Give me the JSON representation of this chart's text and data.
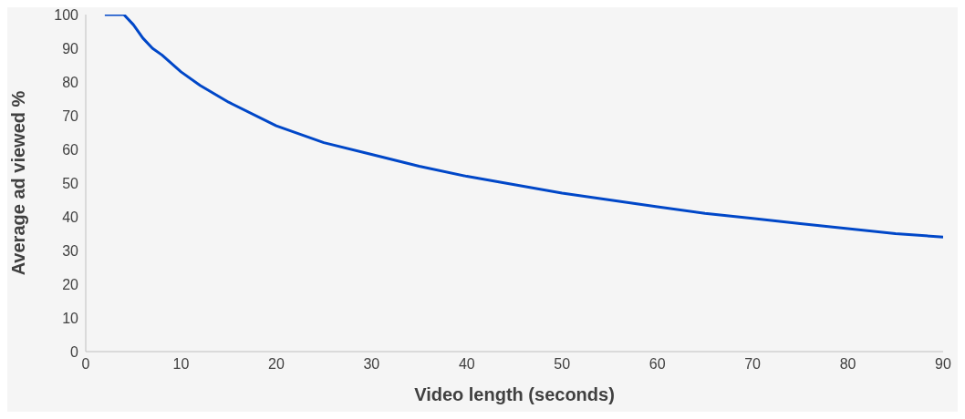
{
  "chart_data": {
    "type": "line",
    "xlabel": "Video length (seconds)",
    "ylabel": "Average ad viewed %",
    "series": [
      {
        "color": "#0047c8",
        "x": [
          2,
          3,
          4,
          5,
          6,
          7,
          8,
          10,
          12,
          15,
          20,
          25,
          30,
          35,
          40,
          45,
          50,
          55,
          60,
          65,
          70,
          75,
          80,
          85,
          90
        ],
        "values": [
          100,
          100,
          100,
          97,
          93,
          90,
          88,
          83,
          79,
          74,
          67,
          62,
          58.5,
          55,
          52,
          49.5,
          47,
          45,
          43,
          41,
          39.5,
          38,
          36.5,
          35,
          34
        ]
      }
    ],
    "xlim": [
      0,
      90
    ],
    "xticks": [
      0,
      10,
      20,
      30,
      40,
      50,
      60,
      70,
      80,
      90
    ],
    "ylim": [
      0,
      100
    ],
    "yticks": [
      0,
      10,
      20,
      30,
      40,
      50,
      60,
      70,
      80,
      90,
      100
    ],
    "grid": false,
    "marker": "none",
    "line_style": "solid"
  }
}
